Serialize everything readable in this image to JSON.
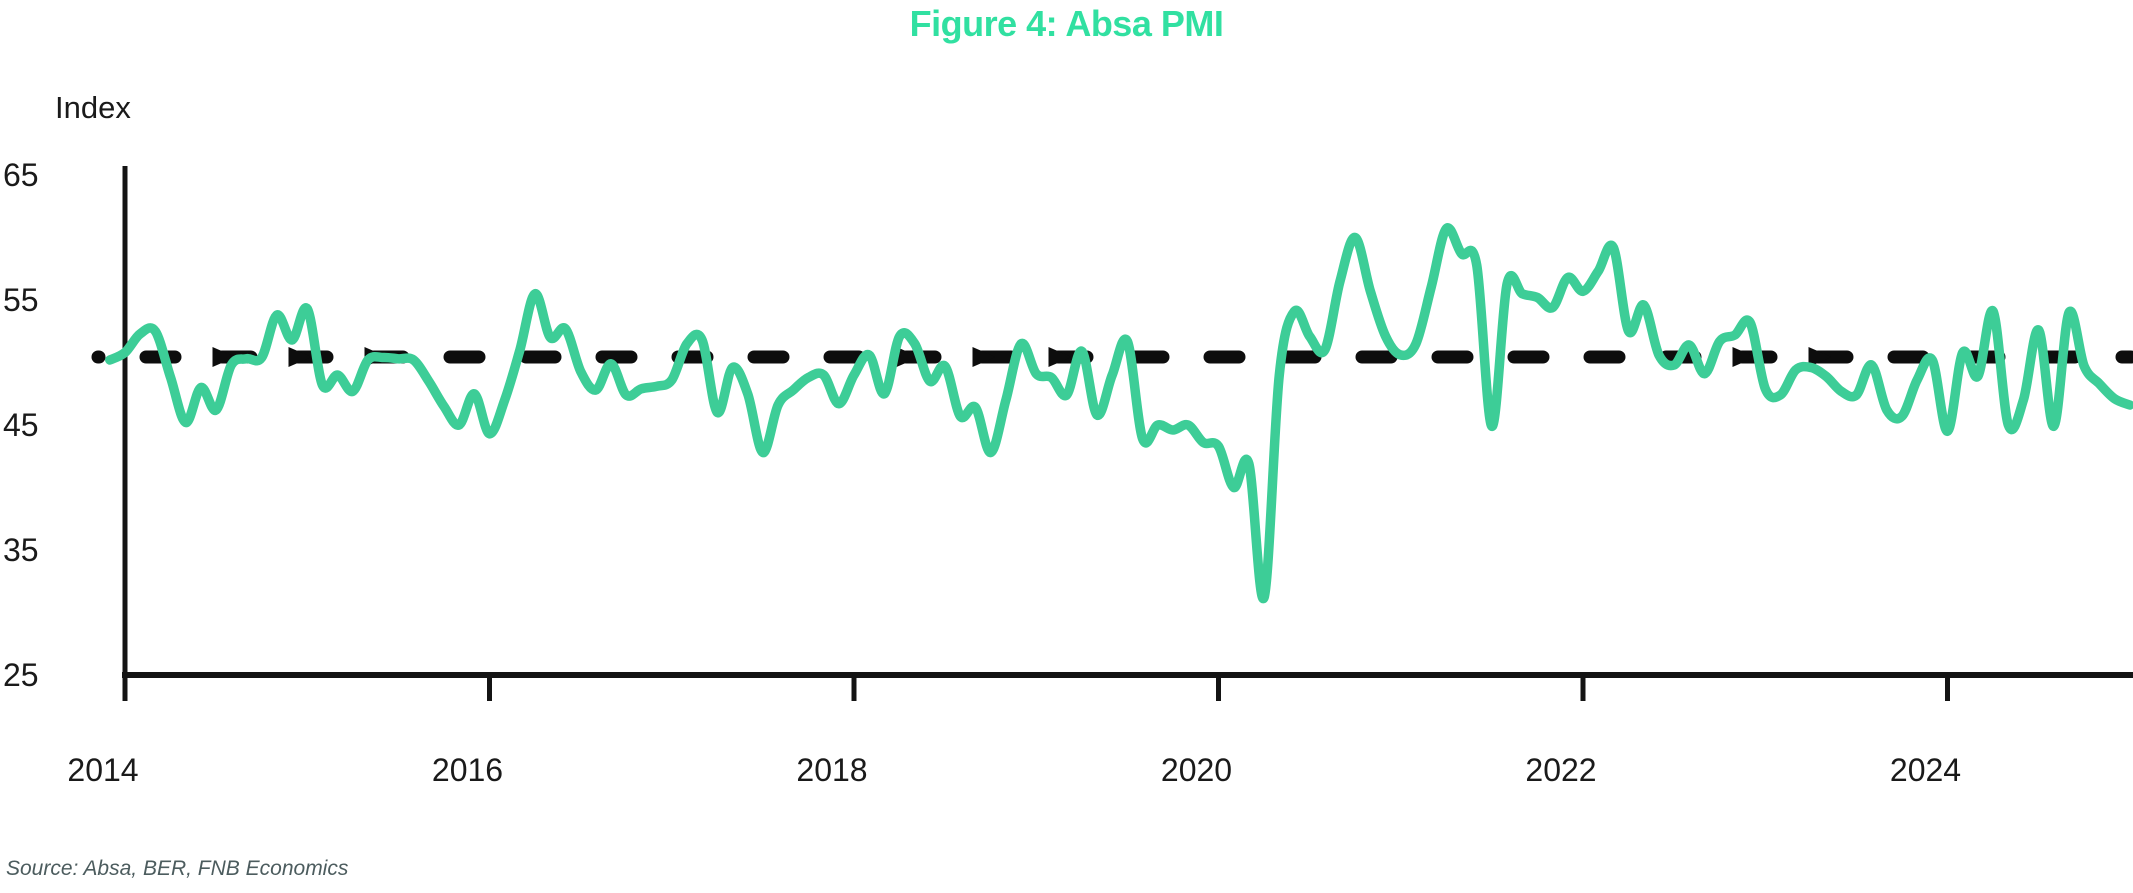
{
  "chart_data": {
    "type": "line",
    "title": "Figure 4: Absa PMI",
    "y_axis_label": "Index",
    "source_note": "Source: Absa, BER, FNB Economics",
    "y_ticks": [
      65,
      55,
      45,
      35,
      25
    ],
    "x_ticks": [
      "2014",
      "2016",
      "2018",
      "2020",
      "2022",
      "2024"
    ],
    "ylim": [
      25,
      65
    ],
    "x_range": [
      "2013-12",
      "2025-01"
    ],
    "grid": false,
    "legend": false,
    "reference_line": {
      "value": 50,
      "style": "dashed",
      "color": "#0d0d0d",
      "arrow_marker": "right-triangle",
      "arrow_dash_indices": [
        1,
        2,
        3,
        10,
        11,
        12,
        21,
        22
      ]
    },
    "series": [
      {
        "name": "Absa PMI",
        "color": "#3dcd97",
        "start": "2013-12",
        "frequency": "monthly",
        "values": [
          50.2,
          50.8,
          52.3,
          52.5,
          48.8,
          45.2,
          48.0,
          46.2,
          49.8,
          50.3,
          50.4,
          53.8,
          51.8,
          54.3,
          48.2,
          49.0,
          47.7,
          50.2,
          50.4,
          50.3,
          50.2,
          48.5,
          46.5,
          45.0,
          47.5,
          44.3,
          47.0,
          51.0,
          55.5,
          52.0,
          52.7,
          49.3,
          47.8,
          49.9,
          47.4,
          47.9,
          48.1,
          48.6,
          51.5,
          51.8,
          46.0,
          49.6,
          47.5,
          42.8,
          46.6,
          47.8,
          48.8,
          49.0,
          46.7,
          49.0,
          50.6,
          47.5,
          52.1,
          51.5,
          48.5,
          49.7,
          45.7,
          46.4,
          42.8,
          47.0,
          51.5,
          49.1,
          48.8,
          47.4,
          50.9,
          45.8,
          49.0,
          51.7,
          43.9,
          45.0,
          44.6,
          45.0,
          43.6,
          43.3,
          40.0,
          41.9,
          31.2,
          49.0,
          54.1,
          52.1,
          51.0,
          56.5,
          60.0,
          55.7,
          52.1,
          50.6,
          51.5,
          56.0,
          60.7,
          58.7,
          57.8,
          44.9,
          56.3,
          55.5,
          55.2,
          54.4,
          56.8,
          55.7,
          57.3,
          59.2,
          52.5,
          54.6,
          50.6,
          49.8,
          51.4,
          49.1,
          51.7,
          52.2,
          53.2,
          47.9,
          47.4,
          49.4,
          49.6,
          48.9,
          47.7,
          47.4,
          49.8,
          46.2,
          45.7,
          48.6,
          50.2,
          44.5,
          50.8,
          48.9,
          54.1,
          45.0,
          47.0,
          52.6,
          44.9,
          54.0,
          49.7,
          48.3,
          47.1,
          46.6
        ]
      }
    ],
    "colors": {
      "title": "#31e0a1",
      "line": "#3dcd97",
      "axis": "#141414",
      "tick_label": "#1a1a1a",
      "source_text": "#4c5c5e",
      "background": "#ffffff"
    }
  }
}
